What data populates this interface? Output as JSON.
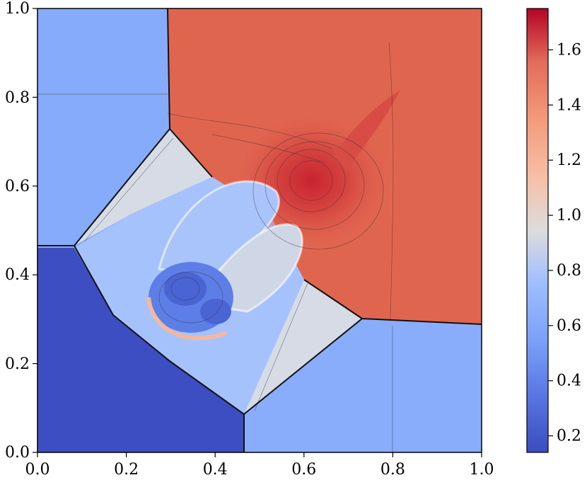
{
  "chart_data": {
    "type": "heatmap",
    "title": "",
    "xlabel": "",
    "ylabel": "",
    "xlim": [
      0.0,
      1.0
    ],
    "ylim": [
      0.0,
      1.0
    ],
    "x_ticks": [
      "0.0",
      "0.2",
      "0.4",
      "0.6",
      "0.8",
      "1.0"
    ],
    "y_ticks": [
      "0.0",
      "0.2",
      "0.4",
      "0.6",
      "0.8",
      "1.0"
    ],
    "colorbar": {
      "range": [
        0.14,
        1.75
      ],
      "ticks": [
        "0.2",
        "0.4",
        "0.6",
        "0.8",
        "1.0",
        "1.2",
        "1.4",
        "1.6"
      ],
      "tick_values": [
        0.2,
        0.4,
        0.6,
        0.8,
        1.0,
        1.2,
        1.4,
        1.6
      ],
      "colormap": "coolwarm"
    },
    "regions": [
      {
        "name": "upper-left",
        "value": 0.6
      },
      {
        "name": "lower-left",
        "value": 0.14
      },
      {
        "name": "lower-right",
        "value": 0.6
      },
      {
        "name": "upper-right",
        "value": 1.5
      },
      {
        "name": "left-triangle",
        "value": 0.97
      },
      {
        "name": "bottom-triangle",
        "value": 0.97
      },
      {
        "name": "mushroom-jet",
        "value": 0.65
      },
      {
        "name": "vortex-core",
        "value": 0.35
      },
      {
        "name": "peak",
        "x": 0.62,
        "y": 0.61,
        "value": 1.72
      }
    ],
    "grid": false
  }
}
